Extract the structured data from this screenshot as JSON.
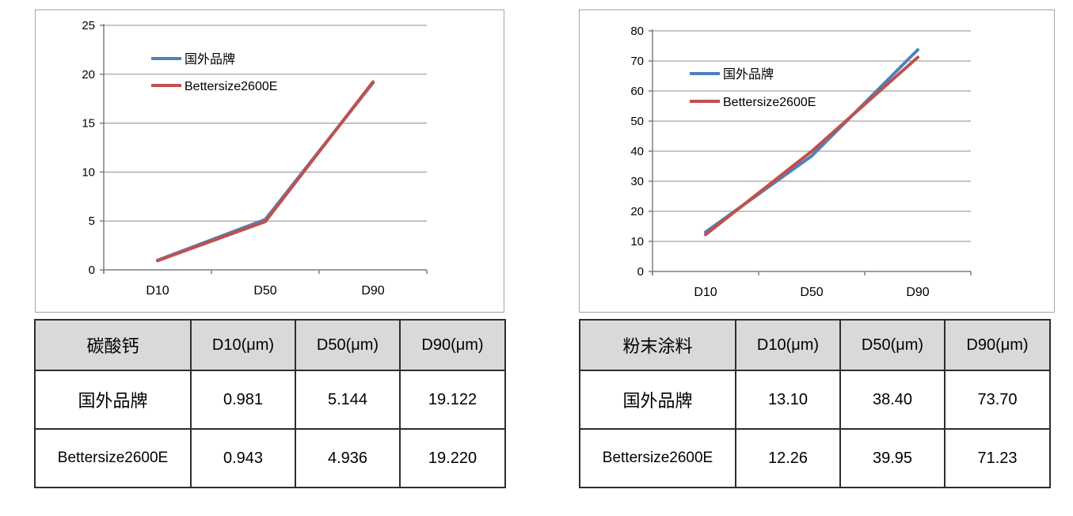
{
  "page": {
    "background": "#ffffff"
  },
  "colors": {
    "series_blue": "#4F81BD",
    "series_red": "#C0504D",
    "gridline": "#8D8D8D",
    "axis": "#7F7F7F",
    "tick_text": "#000000",
    "table_header_bg": "#D9D9D9",
    "table_border": "#2E2E2E",
    "panel_border": "#A6A6A6"
  },
  "chart_data": [
    {
      "type": "line",
      "title": "",
      "categories": [
        "D10",
        "D50",
        "D90"
      ],
      "series": [
        {
          "name": "国外品牌",
          "color": "series_blue",
          "values": [
            0.981,
            5.144,
            19.122
          ]
        },
        {
          "name": "Bettersize2600E",
          "color": "series_red",
          "values": [
            0.943,
            4.936,
            19.22
          ]
        }
      ],
      "ylim": [
        0,
        25
      ],
      "yticks": [
        0,
        5,
        10,
        15,
        20,
        25
      ],
      "grid": "horizontal",
      "legend_position": "inside-top-left"
    },
    {
      "type": "line",
      "title": "",
      "categories": [
        "D10",
        "D50",
        "D90"
      ],
      "series": [
        {
          "name": "国外品牌",
          "color": "series_blue",
          "values": [
            13.1,
            38.4,
            73.7
          ]
        },
        {
          "name": "Bettersize2600E",
          "color": "series_red",
          "values": [
            12.26,
            39.95,
            71.23
          ]
        }
      ],
      "ylim": [
        0,
        80
      ],
      "yticks": [
        0,
        10,
        20,
        30,
        40,
        50,
        60,
        70,
        80
      ],
      "grid": "horizontal",
      "legend_position": "inside-left"
    }
  ],
  "tables": [
    {
      "title": "碳酸钙",
      "columns": [
        "D10(μm)",
        "D50(μm)",
        "D90(μm)"
      ],
      "rows": [
        {
          "label": "国外品牌",
          "values": [
            "0.981",
            "5.144",
            "19.122"
          ]
        },
        {
          "label": "Bettersize2600E",
          "values": [
            "0.943",
            "4.936",
            "19.220"
          ]
        }
      ]
    },
    {
      "title": "粉末涂料",
      "columns": [
        "D10(μm)",
        "D50(μm)",
        "D90(μm)"
      ],
      "rows": [
        {
          "label": "国外品牌",
          "values": [
            "13.10",
            "38.40",
            "73.70"
          ]
        },
        {
          "label": "Bettersize2600E",
          "values": [
            "12.26",
            "39.95",
            "71.23"
          ]
        }
      ]
    }
  ]
}
